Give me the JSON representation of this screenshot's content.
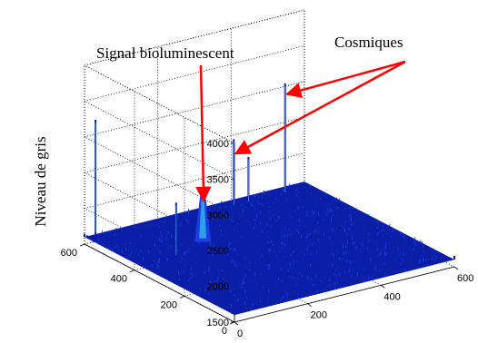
{
  "chart_data": {
    "type": "surface",
    "title": "",
    "xlabel": "",
    "ylabel": "",
    "zlabel": "Niveau de gris",
    "x_ticks": [
      "0",
      "200",
      "400",
      "600"
    ],
    "y_ticks": [
      "0",
      "200",
      "400",
      "600"
    ],
    "z_ticks": [
      "1500",
      "2000",
      "2500",
      "3000",
      "3500",
      "4000"
    ],
    "xlim": [
      0,
      600
    ],
    "ylim": [
      0,
      600
    ],
    "zlim": [
      1500,
      4000
    ],
    "background_level": 1600,
    "grid": true,
    "colormap": [
      "#0a1ea8",
      "#1e3ce6",
      "#2aa0e8",
      "#33d6c8"
    ],
    "peaks": [
      {
        "kind": "signal",
        "x": 200,
        "y": 420,
        "z": 2350
      },
      {
        "kind": "cosmic",
        "x": 380,
        "y": 560,
        "z": 2550
      },
      {
        "kind": "cosmic",
        "x": 420,
        "y": 560,
        "z": 2250
      },
      {
        "kind": "cosmic",
        "x": 520,
        "y": 560,
        "z": 3150
      },
      {
        "kind": "cosmic",
        "x": 30,
        "y": 600,
        "z": 3200
      },
      {
        "kind": "cosmic",
        "x": 100,
        "y": 380,
        "z": 2350
      }
    ],
    "annotations": [
      {
        "text": "Signal bioluminescent",
        "arrow_color": "#ff0000"
      },
      {
        "text": "Cosmiques",
        "arrow_color": "#ff0000"
      }
    ]
  }
}
